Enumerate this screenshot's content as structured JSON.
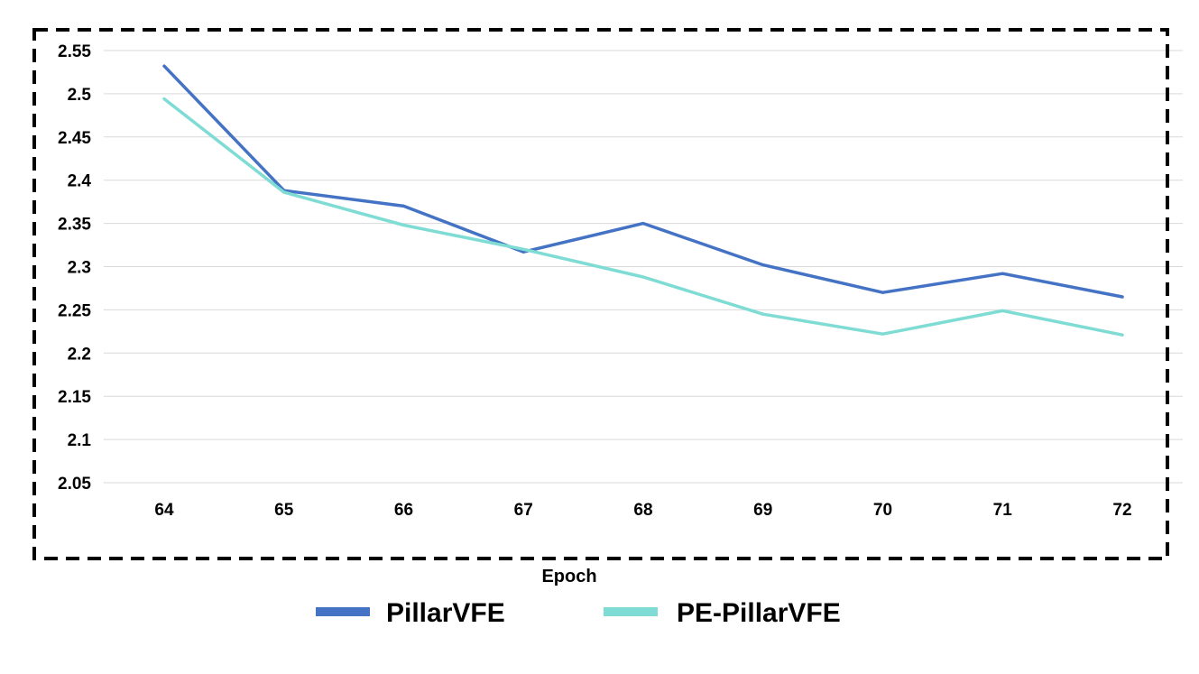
{
  "chart_data": {
    "type": "line",
    "xlabel": "Epoch",
    "ylabel": "",
    "x": [
      64,
      65,
      66,
      67,
      68,
      69,
      70,
      71,
      72
    ],
    "ylim": [
      2.05,
      2.55
    ],
    "yticks": [
      "2.05",
      "2.1",
      "2.15",
      "2.2",
      "2.25",
      "2.3",
      "2.35",
      "2.4",
      "2.45",
      "2.5",
      "2.55"
    ],
    "grid": "horizontal",
    "legend_position": "bottom",
    "series": [
      {
        "name": "PillarVFE",
        "color": "#4472c4",
        "values": [
          2.532,
          2.388,
          2.37,
          2.317,
          2.35,
          2.302,
          2.27,
          2.292,
          2.265
        ]
      },
      {
        "name": "PE-PillarVFE",
        "color": "#7fdcd4",
        "values": [
          2.494,
          2.386,
          2.348,
          2.32,
          2.288,
          2.245,
          2.222,
          2.249,
          2.221
        ]
      }
    ]
  }
}
